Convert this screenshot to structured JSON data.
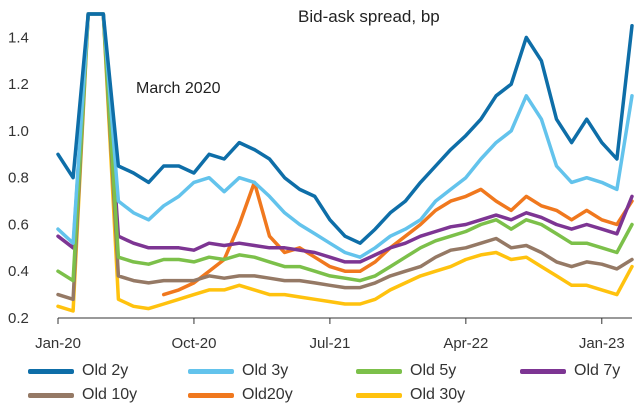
{
  "chart_data": {
    "type": "line",
    "title": "Bid-ask spread, bp",
    "annotation": "March 2020",
    "ylim": [
      0.2,
      1.5
    ],
    "yticks": [
      "0.2",
      "0.4",
      "0.6",
      "0.8",
      "1.0",
      "1.2",
      "1.4"
    ],
    "x_tick_labels": [
      "Jan-20",
      "Oct-20",
      "Jul-21",
      "Apr-22",
      "Jan-23"
    ],
    "x": [
      "Jan-20",
      "Feb-20",
      "Mar-20",
      "Apr-20",
      "May-20",
      "Jun-20",
      "Jul-20",
      "Aug-20",
      "Sep-20",
      "Oct-20",
      "Nov-20",
      "Dec-20",
      "Jan-21",
      "Feb-21",
      "Mar-21",
      "Apr-21",
      "May-21",
      "Jun-21",
      "Jul-21",
      "Aug-21",
      "Sep-21",
      "Oct-21",
      "Nov-21",
      "Dec-21",
      "Jan-22",
      "Feb-22",
      "Mar-22",
      "Apr-22",
      "May-22",
      "Jun-22",
      "Jul-22",
      "Aug-22",
      "Sep-22",
      "Oct-22",
      "Nov-22",
      "Dec-22",
      "Jan-23",
      "Feb-23",
      "Mar-23"
    ],
    "series": [
      {
        "name": "Old 2y",
        "color": "#0e6ea8",
        "values": [
          0.9,
          0.8,
          1.5,
          1.5,
          0.85,
          0.82,
          0.78,
          0.85,
          0.85,
          0.82,
          0.9,
          0.88,
          0.95,
          0.92,
          0.88,
          0.8,
          0.75,
          0.72,
          0.62,
          0.55,
          0.52,
          0.58,
          0.65,
          0.7,
          0.78,
          0.85,
          0.92,
          0.98,
          1.05,
          1.15,
          1.2,
          1.4,
          1.3,
          1.05,
          0.95,
          1.05,
          0.95,
          0.88,
          1.45
        ]
      },
      {
        "name": "Old 3y",
        "color": "#63c3ec",
        "values": [
          0.58,
          0.52,
          1.5,
          1.5,
          0.7,
          0.65,
          0.62,
          0.68,
          0.72,
          0.78,
          0.8,
          0.74,
          0.8,
          0.78,
          0.72,
          0.65,
          0.6,
          0.56,
          0.52,
          0.48,
          0.46,
          0.5,
          0.55,
          0.58,
          0.62,
          0.7,
          0.75,
          0.8,
          0.88,
          0.95,
          1.0,
          1.15,
          1.05,
          0.85,
          0.78,
          0.8,
          0.78,
          0.75,
          1.15
        ]
      },
      {
        "name": "Old 5y",
        "color": "#7cc04a",
        "values": [
          0.4,
          0.36,
          1.5,
          1.5,
          0.46,
          0.44,
          0.43,
          0.45,
          0.45,
          0.44,
          0.46,
          0.45,
          0.47,
          0.46,
          0.44,
          0.42,
          0.42,
          0.4,
          0.38,
          0.37,
          0.36,
          0.38,
          0.42,
          0.46,
          0.5,
          0.53,
          0.55,
          0.57,
          0.6,
          0.62,
          0.58,
          0.62,
          0.6,
          0.56,
          0.52,
          0.52,
          0.5,
          0.48,
          0.6
        ]
      },
      {
        "name": "Old 7y",
        "color": "#7d3593",
        "values": [
          0.55,
          0.5,
          1.5,
          1.5,
          0.55,
          0.52,
          0.5,
          0.5,
          0.5,
          0.49,
          0.52,
          0.51,
          0.52,
          0.51,
          0.5,
          0.5,
          0.49,
          0.48,
          0.46,
          0.44,
          0.44,
          0.47,
          0.5,
          0.52,
          0.55,
          0.57,
          0.59,
          0.6,
          0.62,
          0.64,
          0.62,
          0.65,
          0.63,
          0.6,
          0.58,
          0.6,
          0.58,
          0.56,
          0.72
        ]
      },
      {
        "name": "Old 10y",
        "color": "#957965",
        "values": [
          0.3,
          0.28,
          1.5,
          1.5,
          0.38,
          0.36,
          0.35,
          0.36,
          0.36,
          0.36,
          0.38,
          0.37,
          0.38,
          0.38,
          0.37,
          0.36,
          0.36,
          0.35,
          0.34,
          0.33,
          0.33,
          0.35,
          0.38,
          0.4,
          0.42,
          0.46,
          0.49,
          0.5,
          0.52,
          0.54,
          0.5,
          0.51,
          0.48,
          0.44,
          0.42,
          0.44,
          0.43,
          0.41,
          0.45
        ]
      },
      {
        "name": "Old20y",
        "color": "#f0781e",
        "values": [
          null,
          null,
          null,
          null,
          null,
          null,
          null,
          0.3,
          0.32,
          0.35,
          0.4,
          0.45,
          0.6,
          0.78,
          0.55,
          0.48,
          0.5,
          0.46,
          0.42,
          0.4,
          0.4,
          0.44,
          0.5,
          0.55,
          0.6,
          0.66,
          0.7,
          0.72,
          0.75,
          0.7,
          0.66,
          0.72,
          0.68,
          0.66,
          0.62,
          0.66,
          0.62,
          0.6,
          0.7
        ]
      },
      {
        "name": "Old 30y",
        "color": "#ffc20e",
        "values": [
          0.25,
          0.23,
          1.5,
          1.5,
          0.28,
          0.25,
          0.24,
          0.26,
          0.28,
          0.3,
          0.32,
          0.32,
          0.34,
          0.32,
          0.3,
          0.3,
          0.29,
          0.28,
          0.27,
          0.26,
          0.26,
          0.28,
          0.32,
          0.35,
          0.38,
          0.4,
          0.42,
          0.45,
          0.47,
          0.48,
          0.45,
          0.46,
          0.42,
          0.38,
          0.34,
          0.34,
          0.32,
          0.3,
          0.42
        ]
      }
    ]
  }
}
